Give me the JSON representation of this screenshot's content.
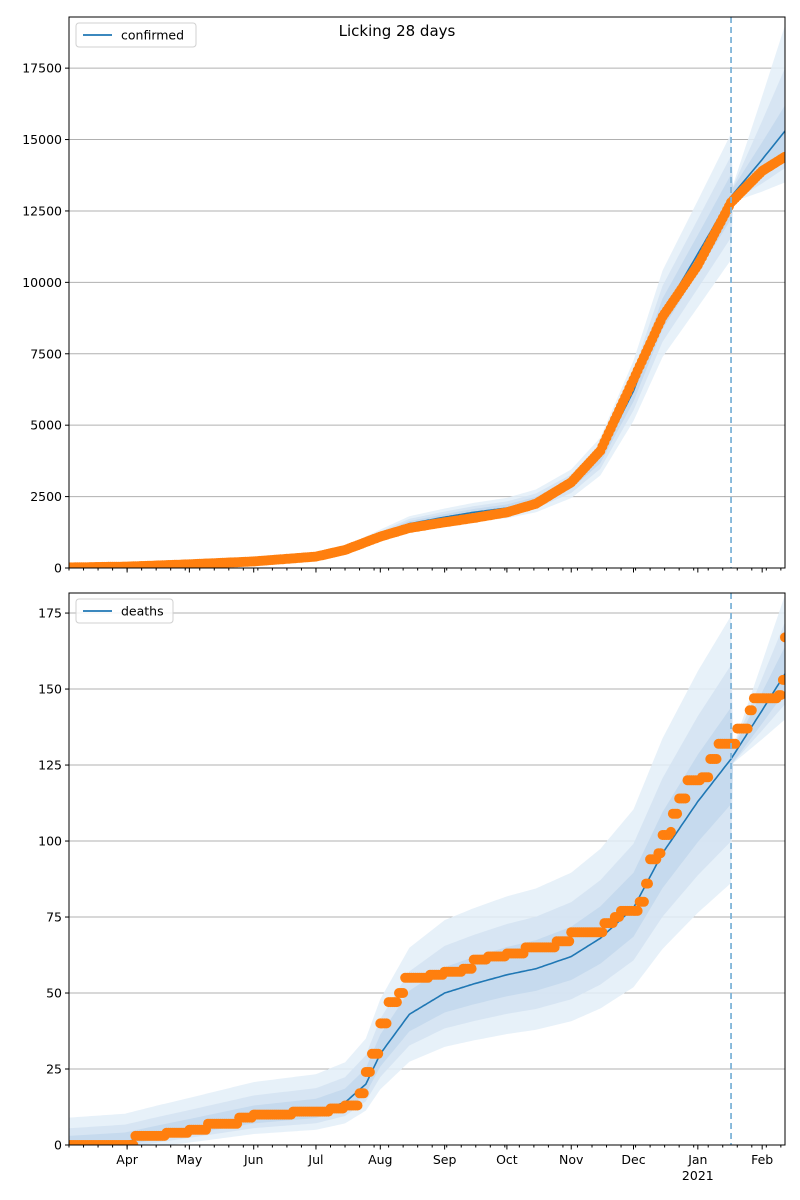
{
  "chart_data": [
    {
      "type": "line",
      "title": "Licking 28 days",
      "xlabel": "",
      "ylabel": "",
      "x_start": "2020-03-04",
      "x_end": "2021-02-12",
      "ylim": [
        0,
        19290
      ],
      "yticks": [
        0,
        2500,
        5000,
        7500,
        10000,
        12500,
        15000,
        17500
      ],
      "ytick_labels": [
        "0",
        "2500",
        "5000",
        "7500",
        "10000",
        "12500",
        "15000",
        "17500"
      ],
      "grid": "horizontal",
      "legend": {
        "position": "top-left",
        "entries": [
          {
            "label": "confirmed",
            "color": "#1f77b4"
          }
        ]
      },
      "forecast_start": "2021-01-17",
      "series": [
        {
          "name": "confirmed",
          "kind": "model-median-line",
          "color": "#1f77b4",
          "points": [
            [
              "2020-03-04",
              20
            ],
            [
              "2020-04-01",
              60
            ],
            [
              "2020-05-01",
              150
            ],
            [
              "2020-06-01",
              260
            ],
            [
              "2020-07-01",
              420
            ],
            [
              "2020-07-15",
              650
            ],
            [
              "2020-08-01",
              1150
            ],
            [
              "2020-08-15",
              1550
            ],
            [
              "2020-09-01",
              1780
            ],
            [
              "2020-09-15",
              1950
            ],
            [
              "2020-10-01",
              2100
            ],
            [
              "2020-10-15",
              2350
            ],
            [
              "2020-11-01",
              2950
            ],
            [
              "2020-11-15",
              3900
            ],
            [
              "2020-12-01",
              6200
            ],
            [
              "2020-12-15",
              8900
            ],
            [
              "2021-01-01",
              11000
            ],
            [
              "2021-01-17",
              13000
            ],
            [
              "2021-02-01",
              14300
            ],
            [
              "2021-02-12",
              15300
            ]
          ]
        },
        {
          "name": "observed confirmed",
          "kind": "scatter",
          "color": "#ff7f0e",
          "points": [
            [
              "2020-03-04",
              20
            ],
            [
              "2020-04-01",
              50
            ],
            [
              "2020-05-01",
              130
            ],
            [
              "2020-06-01",
              230
            ],
            [
              "2020-07-01",
              400
            ],
            [
              "2020-07-15",
              630
            ],
            [
              "2020-08-01",
              1100
            ],
            [
              "2020-08-15",
              1400
            ],
            [
              "2020-09-01",
              1600
            ],
            [
              "2020-09-15",
              1750
            ],
            [
              "2020-10-01",
              1950
            ],
            [
              "2020-10-15",
              2250
            ],
            [
              "2020-11-01",
              3000
            ],
            [
              "2020-11-15",
              4100
            ],
            [
              "2020-12-01",
              6600
            ],
            [
              "2020-12-15",
              8800
            ],
            [
              "2021-01-01",
              10600
            ],
            [
              "2021-01-17",
              12800
            ],
            [
              "2021-02-01",
              13900
            ],
            [
              "2021-02-12",
              14400
            ]
          ]
        }
      ],
      "bands": [
        {
          "level": "outer",
          "upper_at_end": 19000,
          "lower_at_end": 13500
        },
        {
          "level": "middle",
          "upper_at_end": 17500,
          "lower_at_end": 14000
        },
        {
          "level": "inner",
          "upper_at_end": 16200,
          "lower_at_end": 14600
        }
      ]
    },
    {
      "type": "line",
      "title": "",
      "xlabel": "",
      "ylabel": "",
      "x_start": "2020-03-04",
      "x_end": "2021-02-12",
      "ylim": [
        0,
        181.6
      ],
      "yticks": [
        0,
        25,
        50,
        75,
        100,
        125,
        150,
        175
      ],
      "ytick_labels": [
        "0",
        "25",
        "50",
        "75",
        "100",
        "125",
        "150",
        "175"
      ],
      "xticks": [
        "2020-04-01",
        "2020-05-01",
        "2020-06-01",
        "2020-07-01",
        "2020-08-01",
        "2020-09-01",
        "2020-10-01",
        "2020-11-01",
        "2020-12-01",
        "2021-01-01",
        "2021-02-01"
      ],
      "xtick_labels": [
        "Apr",
        "May",
        "Jun",
        "Jul",
        "Aug",
        "Sep",
        "Oct",
        "Nov",
        "Dec",
        "Jan",
        "Feb"
      ],
      "xtick_year_label": {
        "under": "Jan",
        "text": "2021"
      },
      "grid": "horizontal",
      "legend": {
        "position": "top-left",
        "entries": [
          {
            "label": "deaths",
            "color": "#1f77b4"
          }
        ]
      },
      "forecast_start": "2021-01-17",
      "series": [
        {
          "name": "deaths",
          "kind": "model-median-line",
          "color": "#1f77b4",
          "points": [
            [
              "2020-03-04",
              0
            ],
            [
              "2020-03-31",
              1
            ],
            [
              "2020-04-15",
              3
            ],
            [
              "2020-05-01",
              5
            ],
            [
              "2020-06-01",
              9
            ],
            [
              "2020-07-01",
              11
            ],
            [
              "2020-07-15",
              14
            ],
            [
              "2020-07-25",
              20
            ],
            [
              "2020-08-01",
              30
            ],
            [
              "2020-08-15",
              43
            ],
            [
              "2020-09-01",
              50
            ],
            [
              "2020-09-15",
              53
            ],
            [
              "2020-10-01",
              56
            ],
            [
              "2020-10-15",
              58
            ],
            [
              "2020-11-01",
              62
            ],
            [
              "2020-11-15",
              68
            ],
            [
              "2020-12-01",
              78
            ],
            [
              "2020-12-15",
              96
            ],
            [
              "2021-01-01",
              113
            ],
            [
              "2021-01-17",
              127
            ],
            [
              "2021-02-01",
              143
            ],
            [
              "2021-02-12",
              155
            ]
          ]
        },
        {
          "name": "observed deaths",
          "kind": "scatter",
          "color": "#ff7f0e",
          "points": [
            [
              "2020-03-04",
              0
            ],
            [
              "2020-03-31",
              0
            ],
            [
              "2020-04-05",
              3
            ],
            [
              "2020-04-20",
              4
            ],
            [
              "2020-05-01",
              5
            ],
            [
              "2020-05-10",
              7
            ],
            [
              "2020-05-25",
              9
            ],
            [
              "2020-06-01",
              10
            ],
            [
              "2020-06-10",
              10
            ],
            [
              "2020-06-20",
              11
            ],
            [
              "2020-07-01",
              11
            ],
            [
              "2020-07-08",
              12
            ],
            [
              "2020-07-15",
              13
            ],
            [
              "2020-07-22",
              17
            ],
            [
              "2020-07-25",
              24
            ],
            [
              "2020-07-28",
              30
            ],
            [
              "2020-08-01",
              40
            ],
            [
              "2020-08-05",
              47
            ],
            [
              "2020-08-10",
              50
            ],
            [
              "2020-08-13",
              55
            ],
            [
              "2020-08-25",
              56
            ],
            [
              "2020-09-01",
              57
            ],
            [
              "2020-09-10",
              58
            ],
            [
              "2020-09-15",
              61
            ],
            [
              "2020-09-22",
              62
            ],
            [
              "2020-10-01",
              63
            ],
            [
              "2020-10-10",
              65
            ],
            [
              "2020-10-20",
              65
            ],
            [
              "2020-10-25",
              67
            ],
            [
              "2020-11-01",
              70
            ],
            [
              "2020-11-15",
              70
            ],
            [
              "2020-11-17",
              73
            ],
            [
              "2020-11-22",
              75
            ],
            [
              "2020-11-25",
              77
            ],
            [
              "2020-12-04",
              80
            ],
            [
              "2020-12-07",
              86
            ],
            [
              "2020-12-09",
              94
            ],
            [
              "2020-12-13",
              96
            ],
            [
              "2020-12-15",
              102
            ],
            [
              "2020-12-19",
              103
            ],
            [
              "2020-12-20",
              109
            ],
            [
              "2020-12-23",
              114
            ],
            [
              "2020-12-27",
              120
            ],
            [
              "2021-01-03",
              121
            ],
            [
              "2021-01-07",
              127
            ],
            [
              "2021-01-11",
              132
            ],
            [
              "2021-01-17",
              132
            ],
            [
              "2021-01-20",
              137
            ],
            [
              "2021-01-24",
              137
            ],
            [
              "2021-01-26",
              143
            ],
            [
              "2021-01-28",
              147
            ],
            [
              "2021-02-05",
              147
            ],
            [
              "2021-02-09",
              148
            ],
            [
              "2021-02-11",
              153
            ],
            [
              "2021-02-12",
              167
            ]
          ]
        }
      ],
      "bands": [
        {
          "level": "outer",
          "upper_at_end": 181,
          "lower_at_end": 140
        },
        {
          "level": "middle",
          "upper_at_end": 172,
          "lower_at_end": 145
        },
        {
          "level": "inner",
          "upper_at_end": 164,
          "lower_at_end": 149
        }
      ]
    }
  ]
}
